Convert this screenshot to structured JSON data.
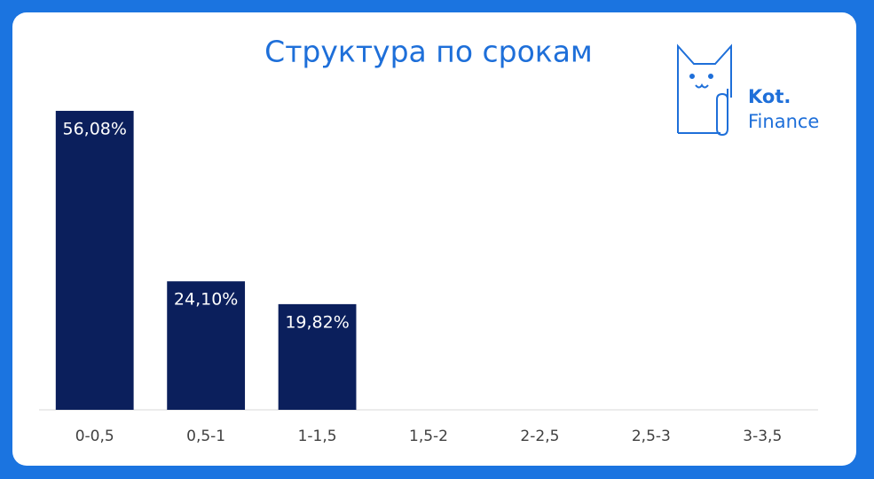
{
  "chart_data": {
    "type": "bar",
    "title": "Структура по срокам",
    "categories": [
      "0-0,5",
      "0,5-1",
      "1-1,5",
      "1,5-2",
      "2-2,5",
      "2,5-3",
      "3-3,5"
    ],
    "values": [
      56.08,
      24.1,
      19.82,
      null,
      null,
      null,
      null
    ],
    "value_labels": [
      "56,08%",
      "24,10%",
      "19,82%",
      null,
      null,
      null,
      null
    ],
    "color": "#0b1f5c",
    "annotations": [
      "Kot.",
      "Finance"
    ]
  }
}
